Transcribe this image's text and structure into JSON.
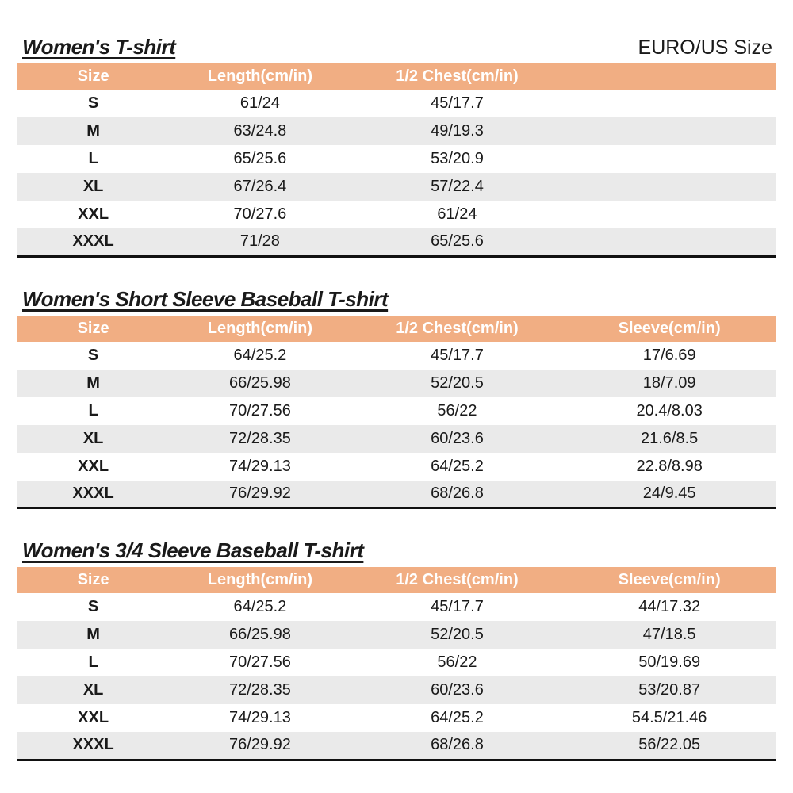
{
  "page": {
    "size_system_label": "EURO/US Size",
    "colors": {
      "header_bg": "#F1AE83",
      "header_text": "#FFFFFF",
      "alt_row_bg": "#EAEAEA",
      "text": "#1A1A1A",
      "table_border": "#111111"
    }
  },
  "tables": [
    {
      "title": "Women's T-shirt",
      "columns": [
        "Size",
        "Length(cm/in)",
        "1/2 Chest(cm/in)",
        ""
      ],
      "rows": [
        [
          "S",
          "61/24",
          "45/17.7",
          ""
        ],
        [
          "M",
          "63/24.8",
          "49/19.3",
          ""
        ],
        [
          "L",
          "65/25.6",
          "53/20.9",
          ""
        ],
        [
          "XL",
          "67/26.4",
          "57/22.4",
          ""
        ],
        [
          "XXL",
          "70/27.6",
          "61/24",
          ""
        ],
        [
          "XXXL",
          "71/28",
          "65/25.6",
          ""
        ]
      ]
    },
    {
      "title": "Women's Short Sleeve Baseball T-shirt",
      "columns": [
        "Size",
        "Length(cm/in)",
        "1/2 Chest(cm/in)",
        "Sleeve(cm/in)"
      ],
      "rows": [
        [
          "S",
          "64/25.2",
          "45/17.7",
          "17/6.69"
        ],
        [
          "M",
          "66/25.98",
          "52/20.5",
          "18/7.09"
        ],
        [
          "L",
          "70/27.56",
          "56/22",
          "20.4/8.03"
        ],
        [
          "XL",
          "72/28.35",
          "60/23.6",
          "21.6/8.5"
        ],
        [
          "XXL",
          "74/29.13",
          "64/25.2",
          "22.8/8.98"
        ],
        [
          "XXXL",
          "76/29.92",
          "68/26.8",
          "24/9.45"
        ]
      ]
    },
    {
      "title": "Women's 3/4 Sleeve Baseball T-shirt",
      "columns": [
        "Size",
        "Length(cm/in)",
        "1/2 Chest(cm/in)",
        "Sleeve(cm/in)"
      ],
      "rows": [
        [
          "S",
          "64/25.2",
          "45/17.7",
          "44/17.32"
        ],
        [
          "M",
          "66/25.98",
          "52/20.5",
          "47/18.5"
        ],
        [
          "L",
          "70/27.56",
          "56/22",
          "50/19.69"
        ],
        [
          "XL",
          "72/28.35",
          "60/23.6",
          "53/20.87"
        ],
        [
          "XXL",
          "74/29.13",
          "64/25.2",
          "54.5/21.46"
        ],
        [
          "XXXL",
          "76/29.92",
          "68/26.8",
          "56/22.05"
        ]
      ]
    }
  ]
}
